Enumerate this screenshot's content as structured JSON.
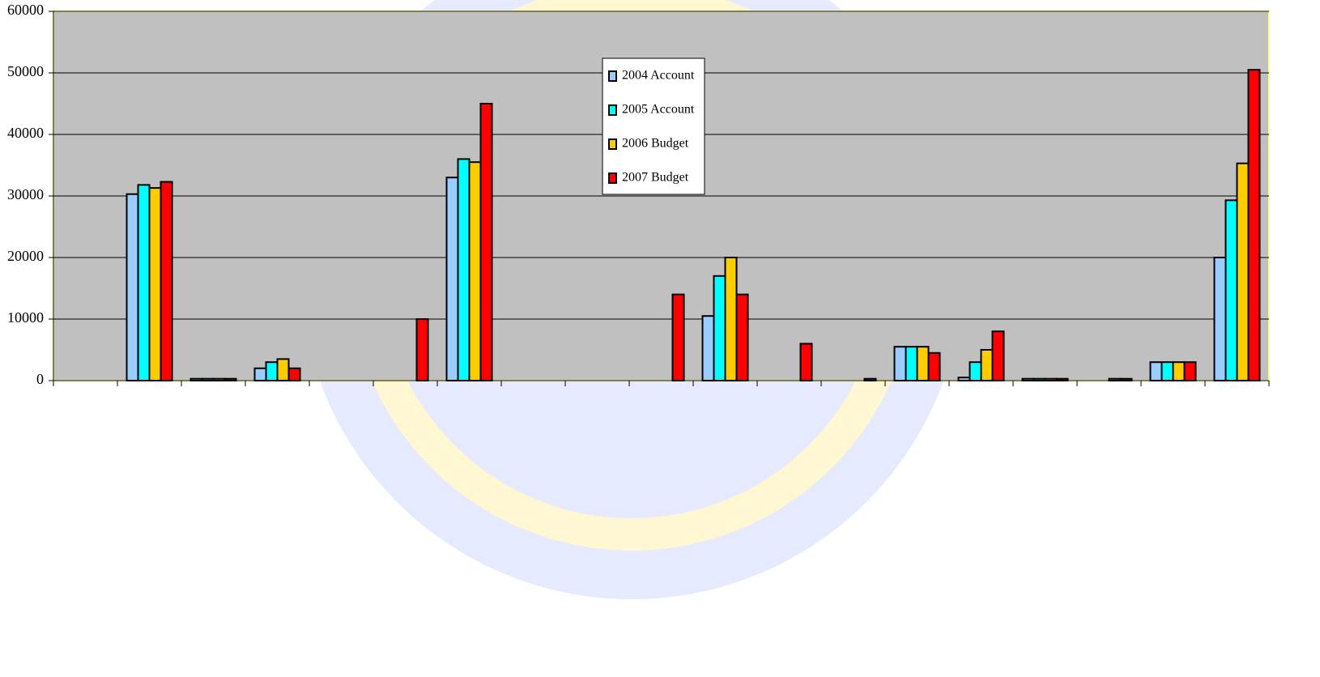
{
  "chart_data": {
    "type": "bar",
    "categories": [
      null,
      null,
      null,
      null,
      null,
      null,
      null,
      null,
      null,
      null,
      null,
      null,
      null,
      null,
      null,
      null,
      null,
      null,
      null
    ],
    "series": [
      {
        "name": "2004 Account",
        "color": "#99ccff",
        "values": [
          0,
          30300,
          300,
          2000,
          0,
          0,
          33000,
          0,
          0,
          0,
          10500,
          0,
          0,
          5500,
          500,
          300,
          0,
          3000,
          20000
        ]
      },
      {
        "name": "2005 Account",
        "color": "#00ffff",
        "values": [
          0,
          31800,
          300,
          3000,
          0,
          0,
          36000,
          0,
          0,
          0,
          17000,
          0,
          0,
          5500,
          3000,
          300,
          0,
          3000,
          29300
        ]
      },
      {
        "name": "2006 Budget",
        "color": "#ffcc00",
        "values": [
          0,
          31300,
          300,
          3500,
          0,
          0,
          35500,
          0,
          0,
          0,
          20000,
          0,
          0,
          5500,
          5000,
          300,
          300,
          3000,
          35300
        ]
      },
      {
        "name": "2007 Budget",
        "color": "#ff0000",
        "values": [
          0,
          32300,
          300,
          2000,
          0,
          10000,
          45000,
          0,
          0,
          14000,
          14000,
          6000,
          300,
          4500,
          8000,
          300,
          300,
          3000,
          50500
        ]
      }
    ],
    "ylim": [
      0,
      60000
    ],
    "yticks": [
      0,
      10000,
      20000,
      30000,
      40000,
      50000,
      60000
    ],
    "grid": true
  }
}
